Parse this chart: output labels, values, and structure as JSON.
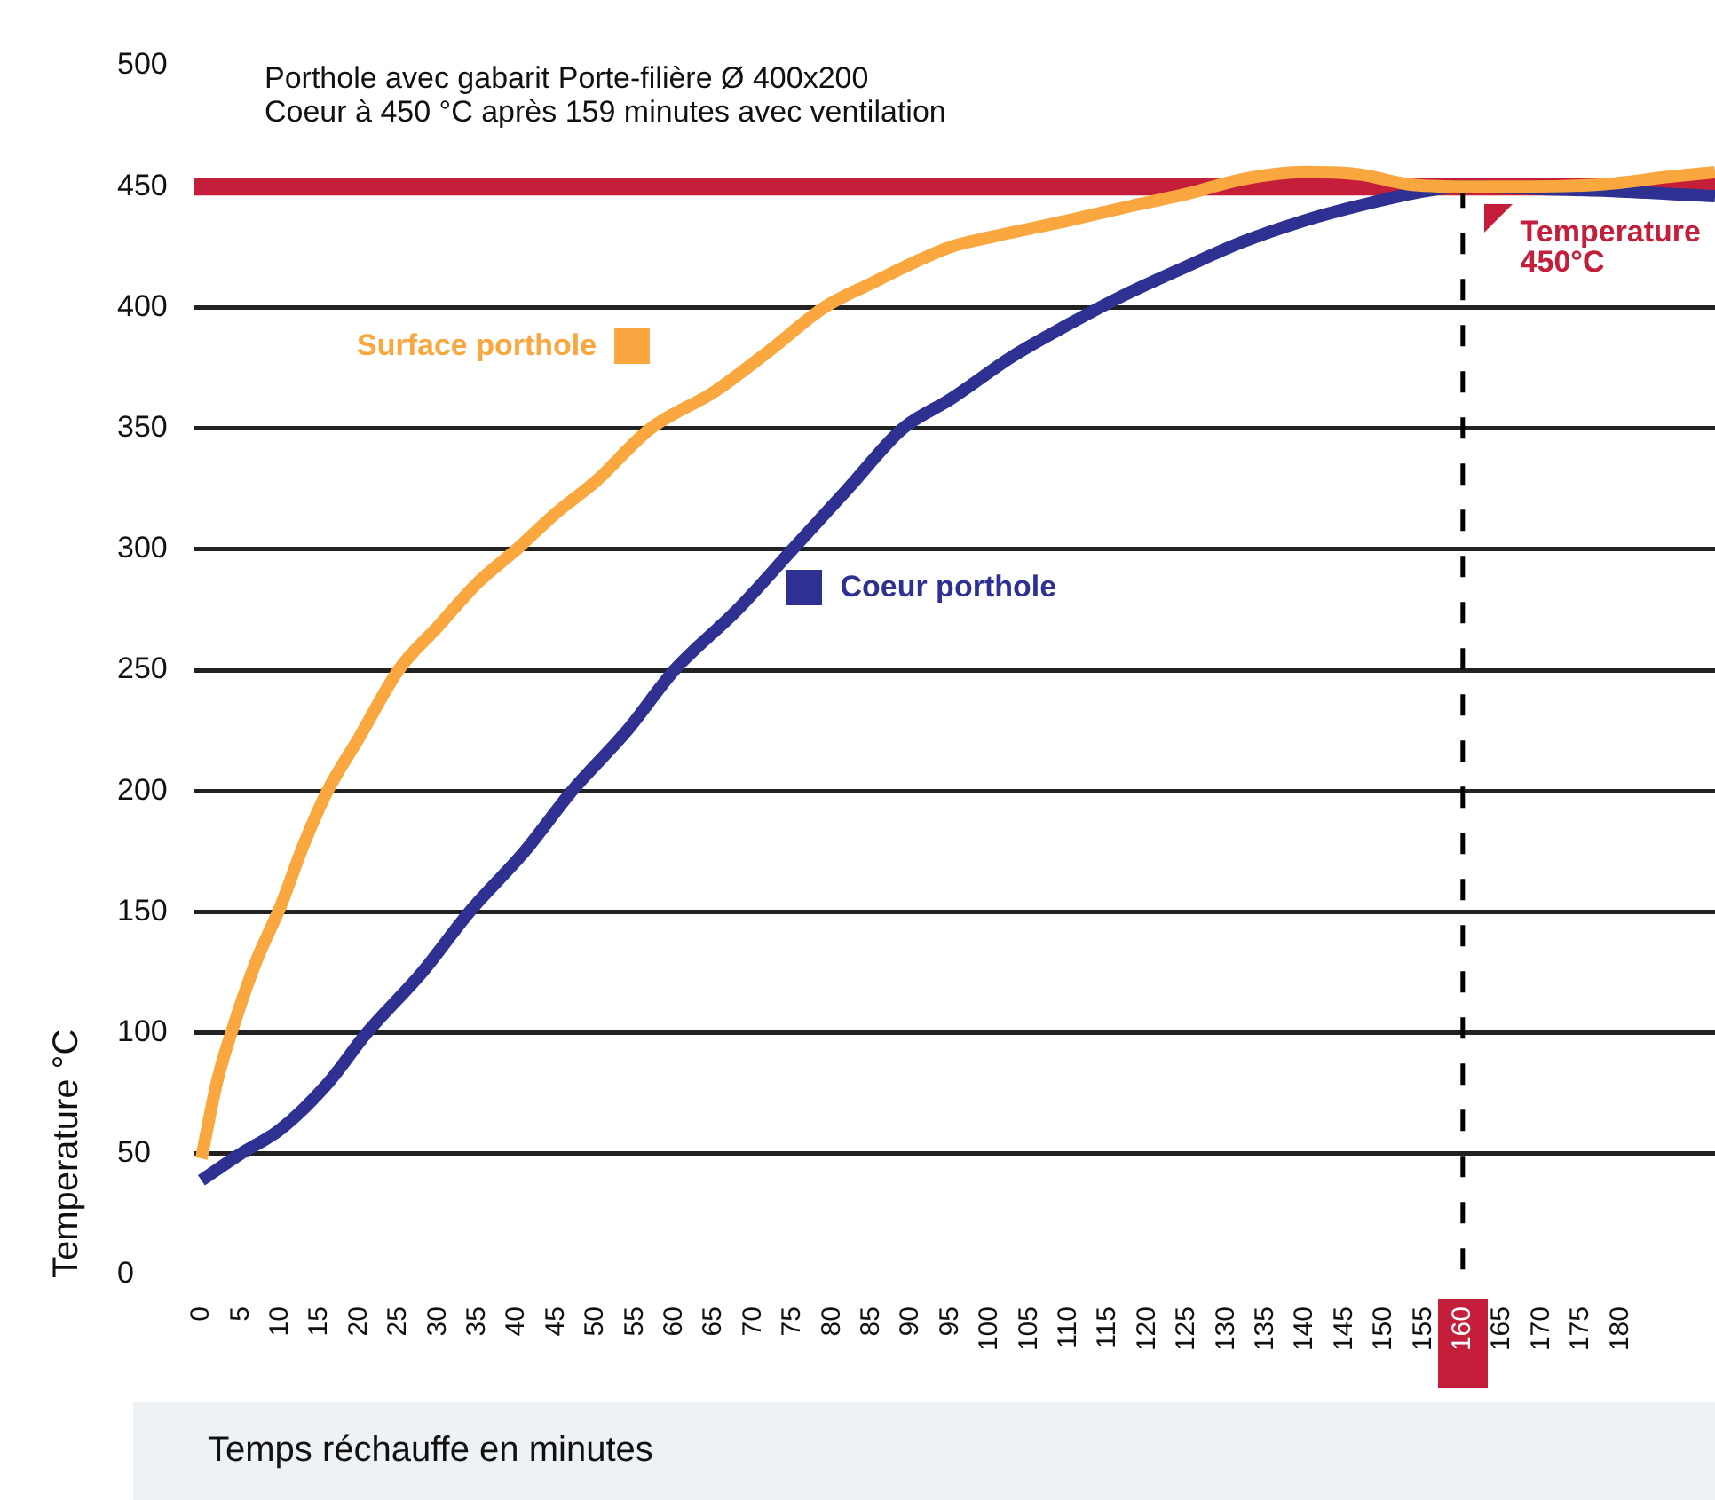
{
  "chart_data": {
    "type": "line",
    "title": "Porthole avec gabarit Porte-filière Ø 400x200",
    "subtitle": "Coeur à 450 °C après 159 minutes avec ventilation",
    "xlabel": "Temps réchauffe en minutes",
    "ylabel": "Temperature °C",
    "xlim": [
      -1,
      192
    ],
    "xticks": [
      0,
      5,
      10,
      15,
      20,
      25,
      30,
      35,
      40,
      45,
      50,
      55,
      60,
      65,
      70,
      75,
      80,
      85,
      90,
      95,
      100,
      105,
      110,
      115,
      120,
      125,
      130,
      135,
      140,
      145,
      150,
      155,
      160,
      165,
      170,
      175,
      180
    ],
    "ylim": [
      0,
      500
    ],
    "yticks": [
      0,
      50,
      100,
      150,
      200,
      250,
      300,
      350,
      400,
      450,
      500
    ],
    "grid": "y",
    "legend": "top right",
    "marker": "none",
    "line_style": "solid",
    "series": [
      {
        "name": "Surface porthole",
        "color": "#f9a73e",
        "x": [
          0,
          2,
          4,
          7,
          10,
          13,
          16,
          20,
          25,
          30,
          35,
          40,
          45,
          50,
          57,
          65,
          72,
          79,
          85,
          90,
          95,
          100,
          110,
          118,
          125,
          132,
          140,
          147,
          153,
          160,
          168,
          178,
          186,
          192
        ],
        "values": [
          48,
          80,
          102,
          130,
          152,
          178,
          200,
          222,
          250,
          268,
          286,
          300,
          315,
          328,
          350,
          365,
          382,
          400,
          410,
          418,
          425,
          429,
          436,
          442,
          447,
          453,
          456,
          455,
          451,
          450,
          450,
          451,
          454,
          456
        ]
      },
      {
        "name": "Coeur porthole",
        "color": "#2e3192",
        "x": [
          0,
          5,
          10,
          16,
          21,
          28,
          34,
          41,
          47,
          54,
          60,
          68,
          75,
          82,
          89,
          95,
          103,
          110,
          117,
          125,
          132,
          140,
          148,
          155,
          160,
          170,
          180,
          192
        ],
        "values": [
          39,
          50,
          60,
          79,
          100,
          125,
          150,
          175,
          200,
          225,
          250,
          275,
          300,
          325,
          350,
          362,
          380,
          393,
          405,
          417,
          427,
          436,
          443,
          448,
          450,
          449,
          448,
          446
        ]
      }
    ],
    "ref_lines": [
      {
        "axis": "y",
        "value": 450,
        "label": "Temperature 450°C",
        "color": "#c41e3a",
        "line_style": "solid"
      },
      {
        "axis": "x",
        "value": 160,
        "color": "#000000",
        "line_style": "dashed"
      }
    ]
  }
}
